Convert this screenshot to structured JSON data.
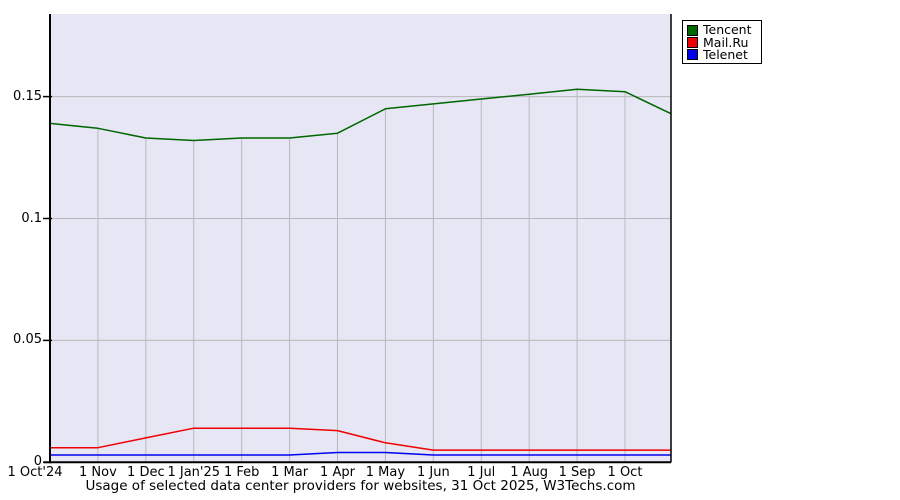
{
  "chart_data": {
    "type": "line",
    "title": "Usage of selected data center providers for websites, 31 Oct 2025, W3Techs.com",
    "x_tick_labels": [
      "1 Oct'24",
      "1 Nov",
      "1 Dec",
      "1 Jan'25",
      "1 Feb",
      "1 Mar",
      "1 Apr",
      "1 May",
      "1 Jun",
      "1 Jul",
      "1 Aug",
      "1 Sep",
      "1 Oct"
    ],
    "x_positions_months": [
      0,
      1,
      2,
      3,
      4,
      5,
      6,
      7,
      8,
      9,
      10,
      11,
      12,
      12.96
    ],
    "y_tick_values": [
      0,
      0.05,
      0.1,
      0.15
    ],
    "y_tick_labels": [
      "0",
      "0.05",
      "0.1",
      "0.15"
    ],
    "ylim": [
      0,
      0.184
    ],
    "legend_position": "top-right-outside",
    "grid": {
      "horizontal": "full-width",
      "vertical": "clipped-below-top-series"
    },
    "series": [
      {
        "name": "Tencent",
        "color": "#006600",
        "values": [
          0.139,
          0.137,
          0.133,
          0.132,
          0.133,
          0.133,
          0.135,
          0.145,
          0.147,
          0.149,
          0.151,
          0.153,
          0.152,
          0.143
        ]
      },
      {
        "name": "Mail.Ru",
        "color": "#f00000",
        "values": [
          0.006,
          0.006,
          0.01,
          0.014,
          0.014,
          0.014,
          0.013,
          0.008,
          0.005,
          0.005,
          0.005,
          0.005,
          0.005,
          0.005
        ]
      },
      {
        "name": "Telenet",
        "color": "#0000ee",
        "values": [
          0.003,
          0.003,
          0.003,
          0.003,
          0.003,
          0.003,
          0.004,
          0.004,
          0.003,
          0.003,
          0.003,
          0.003,
          0.003,
          0.003
        ]
      }
    ],
    "colors": {
      "plot_bg": "#e6e6f5",
      "grid": "#b9b9b9",
      "axis": "#000000",
      "page_bg": "#ffffff",
      "legend_bg": "#ffffff",
      "legend_border": "#000000"
    }
  }
}
